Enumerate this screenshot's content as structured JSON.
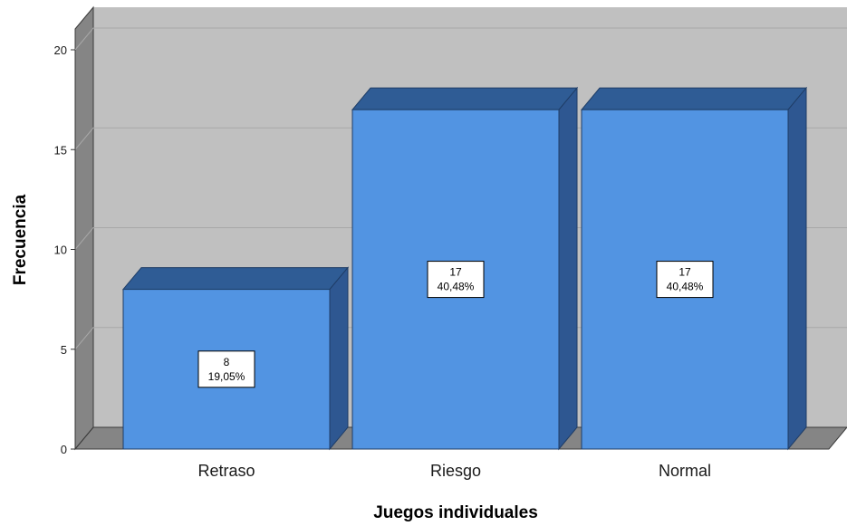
{
  "chart_data": {
    "type": "bar",
    "title": "",
    "xlabel": "Juegos individuales",
    "ylabel": "Frecuencia",
    "categories": [
      "Retraso",
      "Riesgo",
      "Normal"
    ],
    "values": [
      8,
      17,
      17
    ],
    "value_labels": [
      "8",
      "17",
      "17"
    ],
    "percent_labels": [
      "19,05%",
      "40,48%",
      "40,48%"
    ],
    "ylim": [
      0,
      20
    ],
    "yticks": [
      0,
      5,
      10,
      15,
      20
    ],
    "ytick_labels": [
      "0",
      "5",
      "10",
      "15",
      "20"
    ],
    "grid": true,
    "style": "3d",
    "colors": {
      "bar_front": "#5294e2",
      "bar_top": "#2f5c95",
      "bar_side": "#2e5791",
      "back_wall": "#c0c0c0",
      "side_wall": "#858585",
      "floor": "#858585",
      "gridline": "#a8a8a8"
    }
  }
}
